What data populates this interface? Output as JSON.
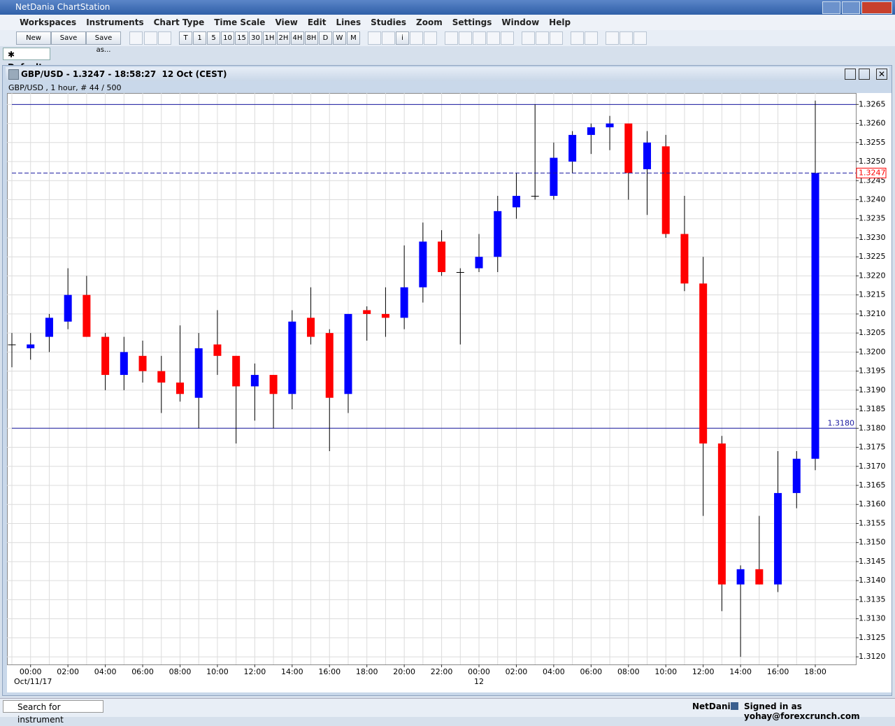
{
  "ui": {
    "window_title": "NetDania ChartStation",
    "menu": [
      "Workspaces",
      "Instruments",
      "Chart Type",
      "Time Scale",
      "View",
      "Edit",
      "Lines",
      "Studies",
      "Zoom",
      "Settings",
      "Window",
      "Help"
    ],
    "file_buttons": [
      "New",
      "Save",
      "Save as..."
    ],
    "timeframes": [
      "T",
      "1",
      "5",
      "10",
      "15",
      "30",
      "1H",
      "2H",
      "4H",
      "8H",
      "D",
      "W",
      "M"
    ],
    "info_button": "i",
    "tab": "Default",
    "chart_header": "GBP/USD - 1.3247 - 18:58:27  12 Oct (CEST)",
    "chart_subheader": "GBP/USD , 1 hour, # 44 / 500",
    "search": "Search for instrument",
    "brand": "NetDania",
    "signed_in": "Signed in as yohay@forexcrunch.com"
  },
  "chart_data": {
    "type": "candlestick",
    "categories": [
      null,
      "00:00",
      null,
      "02:00",
      null,
      "04:00",
      null,
      "06:00",
      null,
      "08:00",
      null,
      "10:00",
      null,
      "12:00",
      null,
      "14:00",
      null,
      "16:00",
      null,
      "18:00",
      null,
      "20:00",
      null,
      "22:00",
      null,
      "00:00",
      null,
      "02:00",
      null,
      "04:00",
      null,
      "06:00",
      null,
      "08:00",
      null,
      "10:00",
      null,
      "12:00",
      null,
      "14:00",
      null,
      "16:00",
      null,
      "18:00"
    ],
    "category_sublabels": [
      null,
      "Oct/11/17",
      null,
      null,
      null,
      null,
      null,
      null,
      null,
      null,
      null,
      null,
      null,
      null,
      null,
      null,
      null,
      null,
      null,
      null,
      null,
      null,
      null,
      null,
      null,
      "12",
      null,
      null,
      null,
      null,
      null,
      null,
      null,
      null,
      null,
      null,
      null,
      null,
      null,
      null,
      null,
      null,
      null,
      null
    ],
    "open": [
      1.3202,
      1.3201,
      1.3204,
      1.3208,
      1.3215,
      1.3204,
      1.3194,
      1.3199,
      1.3195,
      1.3192,
      1.3188,
      1.3202,
      1.3199,
      1.3191,
      1.3194,
      1.3189,
      1.3209,
      1.3205,
      1.3189,
      1.3211,
      1.321,
      1.3209,
      1.3217,
      1.3229,
      1.3221,
      1.3222,
      1.3225,
      1.3238,
      1.3241,
      1.3241,
      1.325,
      1.3257,
      1.3259,
      1.326,
      1.3248,
      1.3254,
      1.3231,
      1.3218,
      1.3176,
      1.3139,
      1.3143,
      1.3139,
      1.3163,
      1.3172
    ],
    "high": [
      1.3205,
      1.3205,
      1.321,
      1.3222,
      1.322,
      1.3205,
      1.3204,
      1.3203,
      1.3199,
      1.3207,
      1.3205,
      1.3211,
      1.3199,
      1.3197,
      1.3194,
      1.3211,
      1.3217,
      1.3206,
      1.321,
      1.3212,
      1.3217,
      1.3228,
      1.3234,
      1.3232,
      1.3222,
      1.3231,
      1.3241,
      1.3247,
      1.3265,
      1.3255,
      1.3258,
      1.326,
      1.3262,
      1.326,
      1.3258,
      1.3257,
      1.3241,
      1.3225,
      1.3178,
      1.3144,
      1.3157,
      1.3174,
      1.3174,
      1.3266
    ],
    "low": [
      1.3196,
      1.3198,
      1.32,
      1.3206,
      1.3204,
      1.319,
      1.319,
      1.3192,
      1.3184,
      1.3187,
      1.318,
      1.3194,
      1.3176,
      1.3182,
      1.318,
      1.3185,
      1.3202,
      1.3174,
      1.3184,
      1.3203,
      1.3204,
      1.3206,
      1.3213,
      1.322,
      1.3202,
      1.3221,
      1.3221,
      1.3235,
      1.324,
      1.324,
      1.3247,
      1.3252,
      1.3253,
      1.324,
      1.3236,
      1.323,
      1.3216,
      1.3157,
      1.3132,
      1.312,
      1.3139,
      1.3137,
      1.3159,
      1.3169
    ],
    "close": [
      1.3202,
      1.3202,
      1.3209,
      1.3215,
      1.3204,
      1.3194,
      1.32,
      1.3195,
      1.3192,
      1.3189,
      1.3201,
      1.3199,
      1.3191,
      1.3194,
      1.3189,
      1.3208,
      1.3204,
      1.3188,
      1.321,
      1.321,
      1.3209,
      1.3217,
      1.3229,
      1.3221,
      1.3221,
      1.3225,
      1.3237,
      1.3241,
      1.3241,
      1.3251,
      1.3257,
      1.3259,
      1.326,
      1.3247,
      1.3255,
      1.3231,
      1.3218,
      1.3176,
      1.3139,
      1.3143,
      1.3139,
      1.3163,
      1.3172,
      1.3247
    ],
    "up_color": "#0000ff",
    "down_color": "#ff0000",
    "flat_color": "#000000",
    "ylim": [
      1.3118,
      1.3268
    ],
    "yticks": [
      {
        "value": 1.312,
        "label": "1.3120"
      },
      1.3125,
      {
        "value": 1.313,
        "label": "1.3130"
      },
      1.3135,
      {
        "value": 1.314,
        "label": "1.3140"
      },
      1.3145,
      {
        "value": 1.315,
        "label": "1.3150"
      },
      1.3155,
      {
        "value": 1.316,
        "label": "1.3160"
      },
      1.3165,
      {
        "value": 1.317,
        "label": "1.3170"
      },
      1.3175,
      {
        "value": 1.318,
        "label": "1.3180"
      },
      1.3185,
      {
        "value": 1.319,
        "label": "1.3190"
      },
      1.3195,
      {
        "value": 1.32,
        "label": "1.3200"
      },
      1.3205,
      {
        "value": 1.321,
        "label": "1.3210"
      },
      1.3215,
      {
        "value": 1.322,
        "label": "1.3220"
      },
      1.3225,
      {
        "value": 1.323,
        "label": "1.3230"
      },
      1.3235,
      {
        "value": 1.324,
        "label": "1.3240"
      },
      1.3245,
      {
        "value": 1.325,
        "label": "1.3250"
      },
      1.3255,
      {
        "value": 1.326,
        "label": "1.3260"
      },
      1.3265
    ],
    "grid": true,
    "price_lines": [
      {
        "value": 1.3265
      },
      {
        "value": 1.318,
        "label": "1.3180"
      }
    ],
    "last_price": {
      "value": 1.3247,
      "label": "1.3247"
    },
    "line_color": "#1a1aa0"
  }
}
